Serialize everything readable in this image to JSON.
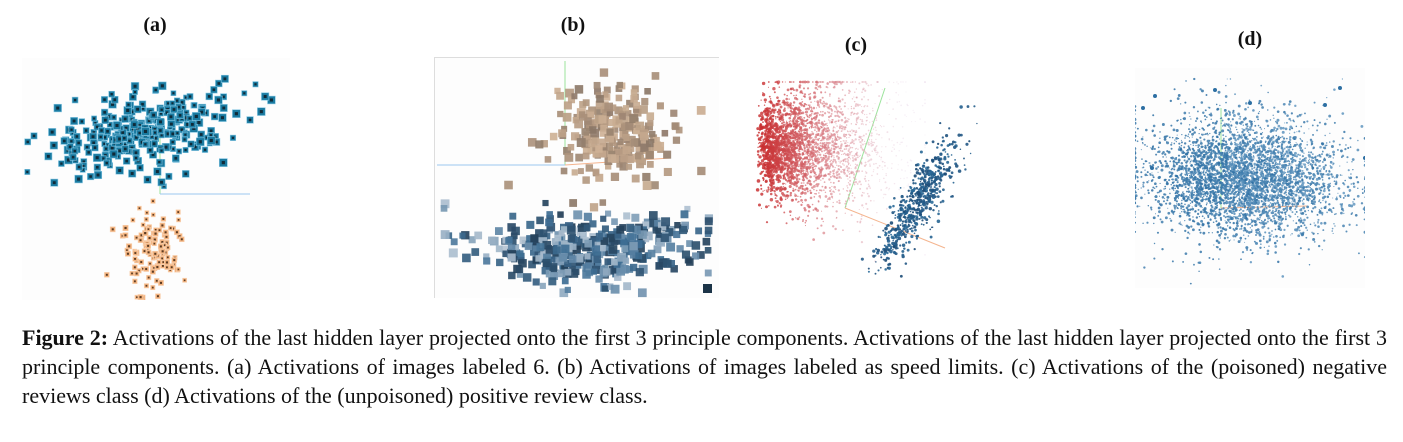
{
  "figure": {
    "caption_label": "Figure 2:",
    "caption_text": " Activations of the last hidden layer projected onto the first 3 principle components. Activations of the last hidden layer projected onto the first 3 principle components. (a) Activations of images labeled 6. (b) Activations of images labeled as speed limits. (c) Activations of the (poisoned) negative reviews class (d) Activations of the (unpoisoned) positive review class."
  },
  "panels": [
    {
      "id": "a",
      "label": "(a)",
      "description": "Activations of images labeled 6"
    },
    {
      "id": "b",
      "label": "(b)",
      "description": "Activations of images labeled as speed limits"
    },
    {
      "id": "c",
      "label": "(c)",
      "description": "Activations of the (poisoned) negative reviews class"
    },
    {
      "id": "d",
      "label": "(d)",
      "description": "Activations of the (unpoisoned) positive review class"
    }
  ],
  "colors": {
    "a_cluster_top": "#1a7aa0",
    "a_cluster_bottom": "#f2b27e",
    "b_cluster_top": "#b59a82",
    "b_cluster_bottom": "#3f6f95",
    "c_cluster_red": "#c41a1a",
    "c_cluster_blue": "#2a6b9a",
    "d_cluster": "#2d6fa3",
    "axis_green": "#9be39b",
    "axis_blue": "#9cc6ef",
    "axis_orange": "#f4b48e"
  },
  "chart_data": [
    {
      "type": "scatter",
      "title": "(a)",
      "xlabel": "",
      "ylabel": "",
      "grid": false,
      "note": "3D PCA projection (first 3 principal components), image-sprite markers",
      "series": [
        {
          "name": "cluster 1 (clean, blue)",
          "color": "#1a7aa0",
          "approx_count": 300,
          "center": [
            0.45,
            0.3
          ],
          "spread": [
            0.28,
            0.1
          ]
        },
        {
          "name": "cluster 2 (poisoned, orange)",
          "color": "#f2b27e",
          "approx_count": 120,
          "center": [
            0.48,
            0.78
          ],
          "spread": [
            0.1,
            0.09
          ]
        }
      ]
    },
    {
      "type": "scatter",
      "title": "(b)",
      "xlabel": "",
      "ylabel": "",
      "grid": false,
      "note": "3D PCA projection, image-sprite markers",
      "series": [
        {
          "name": "cluster 1 (poisoned, tan)",
          "color": "#b59a82",
          "approx_count": 250,
          "center": [
            0.62,
            0.3
          ],
          "spread": [
            0.13,
            0.12
          ]
        },
        {
          "name": "cluster 2 (clean, blue)",
          "color": "#3f6f95",
          "approx_count": 400,
          "center": [
            0.55,
            0.75
          ],
          "spread": [
            0.26,
            0.08
          ]
        }
      ]
    },
    {
      "type": "scatter",
      "title": "(c)",
      "xlabel": "",
      "ylabel": "",
      "grid": false,
      "note": "3D PCA projection of text activations",
      "series": [
        {
          "name": "majority (red)",
          "color": "#c41a1a",
          "approx_count": 3000,
          "center": [
            0.25,
            0.35
          ],
          "spread": [
            0.2,
            0.17
          ]
        },
        {
          "name": "poisoned cluster (blue)",
          "color": "#2a6b9a",
          "approx_count": 600,
          "center": [
            0.72,
            0.62
          ],
          "spread": [
            0.04,
            0.15
          ]
        }
      ]
    },
    {
      "type": "scatter",
      "title": "(d)",
      "xlabel": "",
      "ylabel": "",
      "grid": false,
      "note": "3D PCA projection of text activations, single cluster",
      "series": [
        {
          "name": "positive reviews (blue)",
          "color": "#2d6fa3",
          "approx_count": 4000,
          "center": [
            0.48,
            0.5
          ],
          "spread": [
            0.24,
            0.15
          ]
        }
      ]
    }
  ]
}
